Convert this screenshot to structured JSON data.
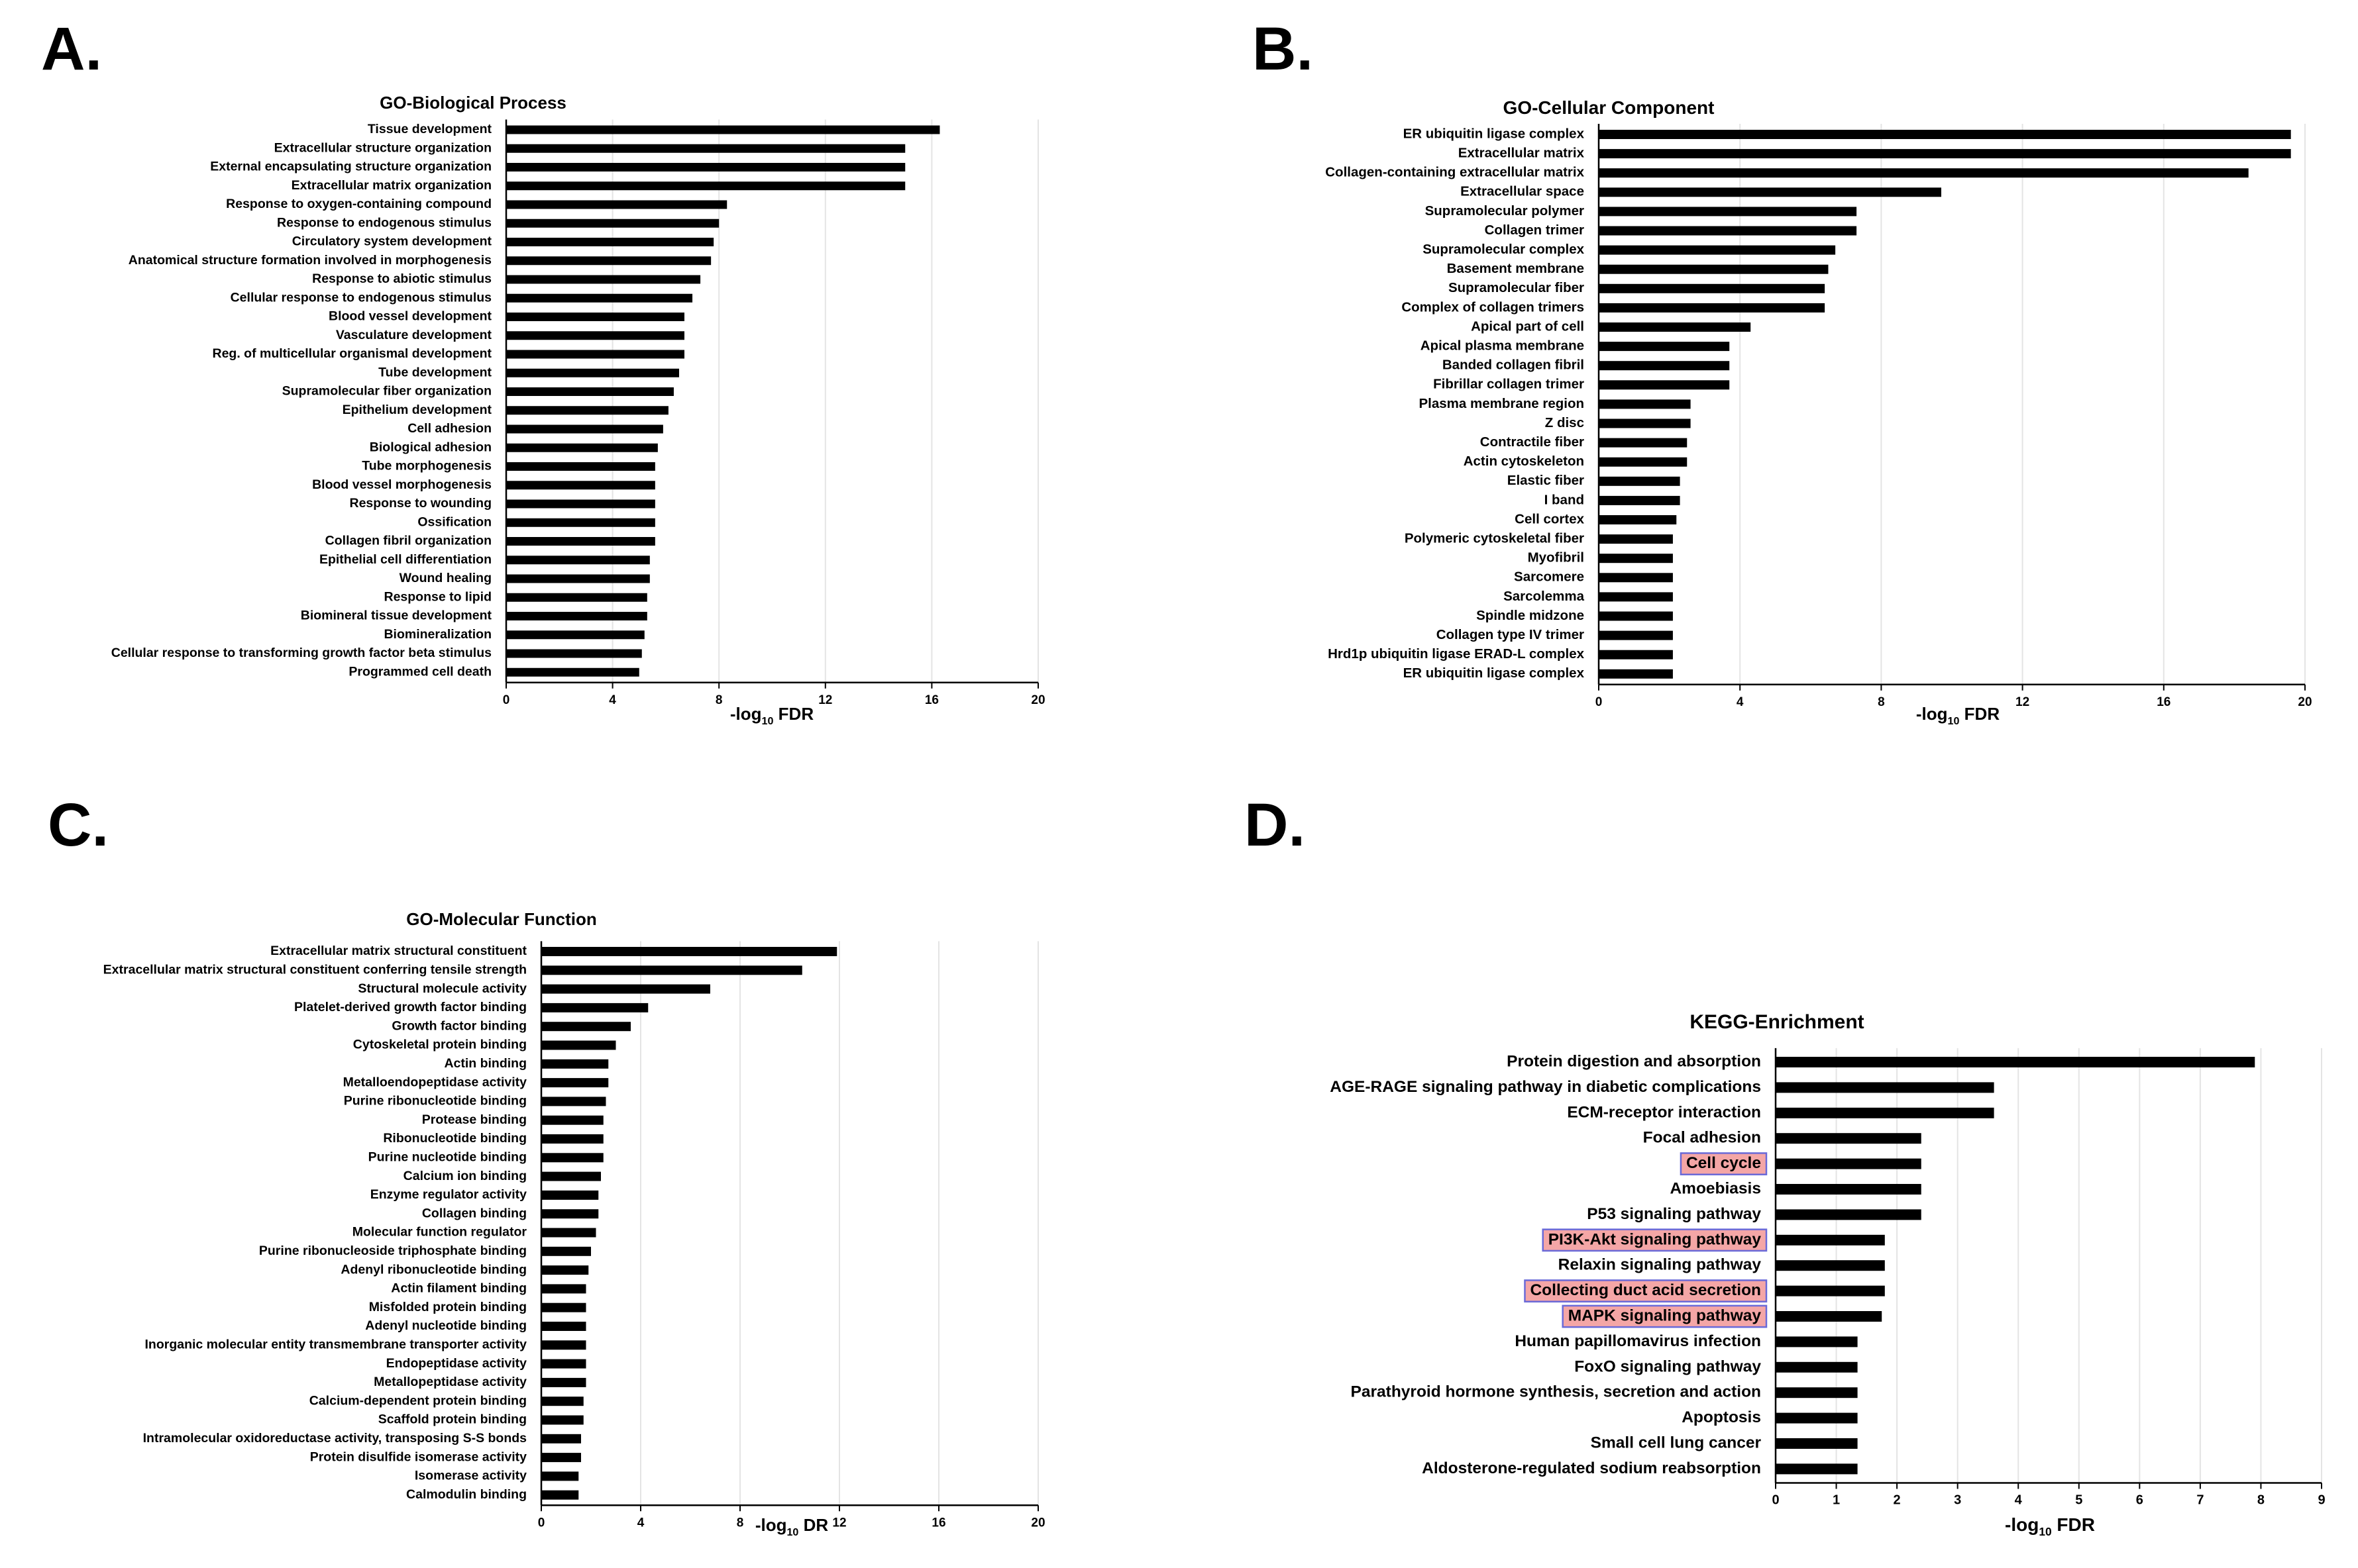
{
  "panels": {
    "A": {
      "letter": "A."
    },
    "B": {
      "letter": "B."
    },
    "C": {
      "letter": "C."
    },
    "D": {
      "letter": "D."
    }
  },
  "chart_data": [
    {
      "id": "A",
      "type": "bar",
      "orientation": "horizontal",
      "title": "GO-Biological Process",
      "xlabel_prefix": "-log",
      "xlabel_sub": "10",
      "xlabel_suffix": " FDR",
      "ylabel": "",
      "xlim": [
        0,
        20
      ],
      "ticks": [
        0,
        4,
        8,
        12,
        16,
        20
      ],
      "grid": true,
      "categories": [
        "Tissue development",
        "Extracellular structure organization",
        "External encapsulating structure organization",
        "Extracellular matrix organization",
        "Response to oxygen-containing compound",
        "Response to endogenous stimulus",
        "Circulatory system development",
        "Anatomical structure formation involved in morphogenesis",
        "Response to abiotic stimulus",
        "Cellular response to endogenous stimulus",
        "Blood vessel development",
        "Vasculature development",
        "Reg. of multicellular organismal development",
        "Tube development",
        "Supramolecular fiber organization",
        "Epithelium development",
        "Cell adhesion",
        "Biological adhesion",
        "Tube morphogenesis",
        "Blood vessel morphogenesis",
        "Response to wounding",
        "Ossification",
        "Collagen fibril organization",
        "Epithelial cell differentiation",
        "Wound healing",
        "Response to lipid",
        "Biomineral tissue development",
        "Biomineralization",
        "Cellular response to transforming growth factor beta stimulus",
        "Programmed cell death"
      ],
      "values": [
        16.3,
        15.0,
        15.0,
        15.0,
        8.3,
        8.0,
        7.8,
        7.7,
        7.3,
        7.0,
        6.7,
        6.7,
        6.7,
        6.5,
        6.3,
        6.1,
        5.9,
        5.7,
        5.6,
        5.6,
        5.6,
        5.6,
        5.6,
        5.4,
        5.4,
        5.3,
        5.3,
        5.2,
        5.1,
        5.0
      ],
      "highlighted": []
    },
    {
      "id": "B",
      "type": "bar",
      "orientation": "horizontal",
      "title": "GO-Cellular Component",
      "xlabel_prefix": "-log",
      "xlabel_sub": "10",
      "xlabel_suffix": " FDR",
      "ylabel": "",
      "xlim": [
        0,
        20
      ],
      "ticks": [
        0,
        4,
        8,
        12,
        16,
        20
      ],
      "grid": true,
      "categories": [
        "ER ubiquitin ligase complex",
        "Extracellular matrix",
        "Collagen-containing extracellular matrix",
        "Extracellular space",
        "Supramolecular polymer",
        "Collagen trimer",
        "Supramolecular complex",
        "Basement membrane",
        "Supramolecular fiber",
        "Complex of collagen trimers",
        "Apical part of cell",
        "Apical plasma membrane",
        "Banded collagen fibril",
        "Fibrillar collagen trimer",
        "Plasma membrane region",
        "Z disc",
        "Contractile fiber",
        "Actin cytoskeleton",
        "Elastic fiber",
        "I band",
        "Cell cortex",
        "Polymeric cytoskeletal fiber",
        "Myofibril",
        "Sarcomere",
        "Sarcolemma",
        "Spindle midzone",
        "Collagen type IV trimer",
        "Hrd1p ubiquitin ligase ERAD-L complex",
        "ER ubiquitin ligase complex"
      ],
      "values": [
        19.6,
        19.6,
        18.4,
        9.7,
        7.3,
        7.3,
        6.7,
        6.5,
        6.4,
        6.4,
        4.3,
        3.7,
        3.7,
        3.7,
        2.6,
        2.6,
        2.5,
        2.5,
        2.3,
        2.3,
        2.2,
        2.1,
        2.1,
        2.1,
        2.1,
        2.1,
        2.1,
        2.1,
        2.1
      ],
      "highlighted": []
    },
    {
      "id": "C",
      "type": "bar",
      "orientation": "horizontal",
      "title": "GO-Molecular Function",
      "xlabel_prefix": "-log",
      "xlabel_sub": "10",
      "xlabel_suffix": " DR",
      "ylabel": "",
      "xlim": [
        0,
        20
      ],
      "ticks": [
        0,
        4,
        8,
        12,
        16,
        20
      ],
      "grid": true,
      "categories": [
        "Extracellular matrix structural constituent",
        "Extracellular matrix structural constituent conferring tensile strength",
        "Structural molecule activity",
        "Platelet-derived growth factor binding",
        "Growth factor binding",
        "Cytoskeletal protein binding",
        "Actin binding",
        "Metalloendopeptidase activity",
        "Purine ribonucleotide binding",
        "Protease binding",
        "Ribonucleotide binding",
        "Purine nucleotide binding",
        "Calcium ion binding",
        "Enzyme regulator activity",
        "Collagen binding",
        "Molecular function regulator",
        "Purine ribonucleoside triphosphate binding",
        "Adenyl ribonucleotide binding",
        "Actin filament binding",
        "Misfolded protein binding",
        "Adenyl nucleotide binding",
        "Inorganic molecular entity transmembrane transporter activity",
        "Endopeptidase activity",
        "Metallopeptidase activity",
        "Calcium-dependent protein binding",
        "Scaffold protein binding",
        "Intramolecular oxidoreductase activity, transposing S-S bonds",
        "Protein disulfide isomerase activity",
        "Isomerase activity",
        "Calmodulin binding"
      ],
      "values": [
        11.9,
        10.5,
        6.8,
        4.3,
        3.6,
        3.0,
        2.7,
        2.7,
        2.6,
        2.5,
        2.5,
        2.5,
        2.4,
        2.3,
        2.3,
        2.2,
        2.0,
        1.9,
        1.8,
        1.8,
        1.8,
        1.8,
        1.8,
        1.8,
        1.7,
        1.7,
        1.6,
        1.6,
        1.5,
        1.5
      ],
      "highlighted": []
    },
    {
      "id": "D",
      "type": "bar",
      "orientation": "horizontal",
      "title": "KEGG-Enrichment",
      "xlabel_prefix": "-log",
      "xlabel_sub": "10",
      "xlabel_suffix": " FDR",
      "ylabel": "",
      "xlim": [
        0,
        9
      ],
      "ticks": [
        0,
        1,
        2,
        3,
        4,
        5,
        6,
        7,
        8,
        9
      ],
      "grid": true,
      "categories": [
        "Protein digestion and absorption",
        "AGE-RAGE signaling pathway in diabetic complications",
        "ECM-receptor interaction",
        "Focal adhesion",
        "Cell cycle",
        "Amoebiasis",
        "P53 signaling pathway",
        "PI3K-Akt signaling pathway",
        "Relaxin signaling pathway",
        "Collecting duct acid secretion",
        "MAPK signaling pathway",
        "Human papillomavirus infection",
        "FoxO signaling pathway",
        "Parathyroid hormone synthesis, secretion and action",
        "Apoptosis",
        "Small cell lung cancer",
        "Aldosterone-regulated sodium reabsorption"
      ],
      "values": [
        7.9,
        3.6,
        3.6,
        2.4,
        2.4,
        2.4,
        2.4,
        1.8,
        1.8,
        1.8,
        1.75,
        1.35,
        1.35,
        1.35,
        1.35,
        1.35,
        1.35
      ],
      "highlighted": [
        4,
        7,
        9,
        10
      ],
      "highlight_fill": "#f4a6a6",
      "highlight_stroke": "#6a6ad8",
      "highlight_text": "#c00000"
    }
  ]
}
